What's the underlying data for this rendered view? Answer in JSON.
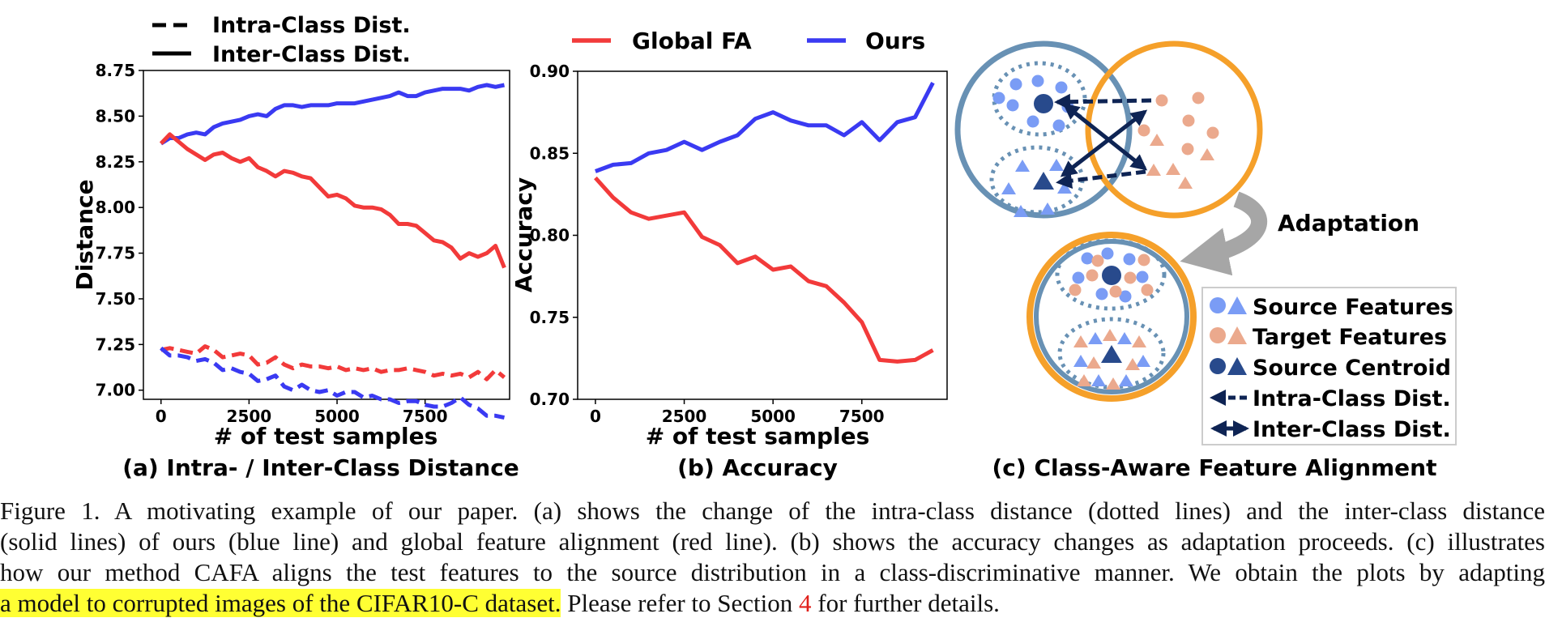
{
  "colors": {
    "red": "#f23a3a",
    "blue": "#3a3af2",
    "source_feature": "#7a9cf5",
    "target_feature": "#eba98d",
    "centroid": "#284a8c",
    "arrow": "#0e2454",
    "ring_blue": "#6891b4",
    "ring_orange": "#f5a02a",
    "adapt_arrow": "#a6a6a6",
    "highlight": "#ffff33",
    "ref": "#e0201b"
  },
  "panel_a": {
    "caption": "(a) Intra- / Inter-Class Distance",
    "legend": [
      {
        "label": "Intra-Class Dist.",
        "style": "dashed"
      },
      {
        "label": "Inter-Class Dist.",
        "style": "solid"
      }
    ],
    "chart_data": {
      "type": "line",
      "xlabel": "# of test samples",
      "ylabel": "Distance",
      "xlim": [
        -500,
        9900
      ],
      "ylim": [
        6.95,
        8.75
      ],
      "xticks": [
        0,
        2500,
        5000,
        7500
      ],
      "xtick_labels": [
        "0",
        "2500",
        "5000",
        "7500"
      ],
      "yticks": [
        7.0,
        7.25,
        7.5,
        7.75,
        8.0,
        8.25,
        8.5,
        8.75
      ],
      "ytick_labels": [
        "7.00",
        "7.25",
        "7.50",
        "7.75",
        "8.00",
        "8.25",
        "8.50",
        "8.75"
      ],
      "grid": false,
      "x": [
        0,
        250,
        500,
        750,
        1000,
        1250,
        1500,
        1750,
        2000,
        2250,
        2500,
        2750,
        3000,
        3250,
        3500,
        3750,
        4000,
        4250,
        4500,
        4750,
        5000,
        5250,
        5500,
        5750,
        6000,
        6250,
        6500,
        6750,
        7000,
        7250,
        7500,
        7750,
        8000,
        8250,
        8500,
        8750,
        9000,
        9250,
        9500,
        9750
      ],
      "series": [
        {
          "color_key": "blue",
          "style": "solid",
          "values": [
            8.35,
            8.38,
            8.38,
            8.4,
            8.41,
            8.4,
            8.44,
            8.46,
            8.47,
            8.48,
            8.5,
            8.51,
            8.5,
            8.54,
            8.56,
            8.56,
            8.55,
            8.56,
            8.56,
            8.56,
            8.57,
            8.57,
            8.57,
            8.58,
            8.59,
            8.6,
            8.61,
            8.63,
            8.61,
            8.61,
            8.63,
            8.64,
            8.65,
            8.65,
            8.65,
            8.64,
            8.66,
            8.67,
            8.66,
            8.67
          ]
        },
        {
          "color_key": "red",
          "style": "solid",
          "values": [
            8.35,
            8.4,
            8.36,
            8.32,
            8.29,
            8.26,
            8.29,
            8.3,
            8.27,
            8.25,
            8.27,
            8.22,
            8.2,
            8.17,
            8.2,
            8.19,
            8.17,
            8.16,
            8.11,
            8.06,
            8.07,
            8.05,
            8.01,
            8.0,
            8.0,
            7.99,
            7.96,
            7.91,
            7.91,
            7.9,
            7.86,
            7.82,
            7.81,
            7.78,
            7.72,
            7.75,
            7.73,
            7.75,
            7.79,
            7.67
          ]
        },
        {
          "color_key": "red",
          "style": "dashed",
          "values": [
            7.22,
            7.23,
            7.22,
            7.21,
            7.2,
            7.24,
            7.22,
            7.18,
            7.19,
            7.2,
            7.19,
            7.14,
            7.15,
            7.18,
            7.14,
            7.12,
            7.14,
            7.13,
            7.13,
            7.12,
            7.13,
            7.11,
            7.12,
            7.11,
            7.12,
            7.1,
            7.11,
            7.11,
            7.12,
            7.11,
            7.1,
            7.08,
            7.09,
            7.08,
            7.09,
            7.07,
            7.1,
            7.06,
            7.11,
            7.07
          ]
        },
        {
          "color_key": "blue",
          "style": "dashed",
          "values": [
            7.23,
            7.19,
            7.19,
            7.18,
            7.16,
            7.17,
            7.15,
            7.11,
            7.12,
            7.1,
            7.09,
            7.05,
            7.06,
            7.08,
            7.02,
            7.0,
            7.03,
            7.0,
            6.99,
            7.0,
            6.97,
            6.99,
            6.99,
            6.96,
            6.97,
            6.95,
            6.95,
            6.93,
            6.94,
            6.94,
            6.92,
            6.91,
            6.91,
            6.93,
            6.96,
            6.92,
            6.9,
            6.86,
            6.86,
            6.85
          ]
        }
      ]
    }
  },
  "panel_b": {
    "caption": "(b) Accuracy",
    "legend": [
      {
        "label": "Global FA",
        "color_key": "red"
      },
      {
        "label": "Ours",
        "color_key": "blue"
      }
    ],
    "chart_data": {
      "type": "line",
      "xlabel": "# of test samples",
      "ylabel": "Accuracy",
      "xlim": [
        -500,
        9900
      ],
      "ylim": [
        0.7,
        0.9
      ],
      "xticks": [
        0,
        2500,
        5000,
        7500
      ],
      "xtick_labels": [
        "0",
        "2500",
        "5000",
        "7500"
      ],
      "yticks": [
        0.7,
        0.75,
        0.8,
        0.85,
        0.9
      ],
      "ytick_labels": [
        "0.70",
        "0.75",
        "0.80",
        "0.85",
        "0.90"
      ],
      "grid": false,
      "x": [
        0,
        500,
        1000,
        1500,
        2000,
        2500,
        3000,
        3500,
        4000,
        4500,
        5000,
        5500,
        6000,
        6500,
        7000,
        7500,
        8000,
        8500,
        9000,
        9500
      ],
      "series": [
        {
          "name": "Global FA",
          "color_key": "red",
          "values": [
            0.835,
            0.823,
            0.814,
            0.81,
            0.812,
            0.814,
            0.799,
            0.794,
            0.783,
            0.787,
            0.779,
            0.781,
            0.772,
            0.769,
            0.759,
            0.747,
            0.724,
            0.723,
            0.724,
            0.73
          ]
        },
        {
          "name": "Ours",
          "color_key": "blue",
          "values": [
            0.839,
            0.843,
            0.844,
            0.85,
            0.852,
            0.857,
            0.852,
            0.857,
            0.861,
            0.871,
            0.875,
            0.87,
            0.867,
            0.867,
            0.861,
            0.869,
            0.858,
            0.869,
            0.872,
            0.893
          ]
        }
      ]
    }
  },
  "panel_c": {
    "caption": "(c) Class-Aware Feature Alignment",
    "adaptation_label": "Adaptation",
    "legend": [
      {
        "label": "Source Features",
        "icon": "source-features-icon"
      },
      {
        "label": "Target Features",
        "icon": "target-features-icon"
      },
      {
        "label": "Source Centroid",
        "icon": "source-centroid-icon"
      },
      {
        "label": "Intra-Class Dist.",
        "icon": "dashed-arrow-icon"
      },
      {
        "label": "Inter-Class Dist.",
        "icon": "double-arrow-icon"
      }
    ]
  },
  "caption": {
    "line1": "Figure 1.  A motivating example of our paper.  (a) shows the change of the intra-class distance (dotted lines) and the inter-class distance",
    "line2": "(solid lines) of ours (blue line) and global feature alignment (red line). (b) shows the accuracy changes as adaptation proceeds. (c) illustrates",
    "line3": "how our method CAFA aligns the test features to the source distribution in a class-discriminative manner. We obtain the plots by adapting",
    "line4_highlight": "a model to corrupted images of the CIFAR10-C dataset.",
    "line4_rest": " Please refer to Section ",
    "section_ref": "4",
    "line4_end": " for further details."
  }
}
